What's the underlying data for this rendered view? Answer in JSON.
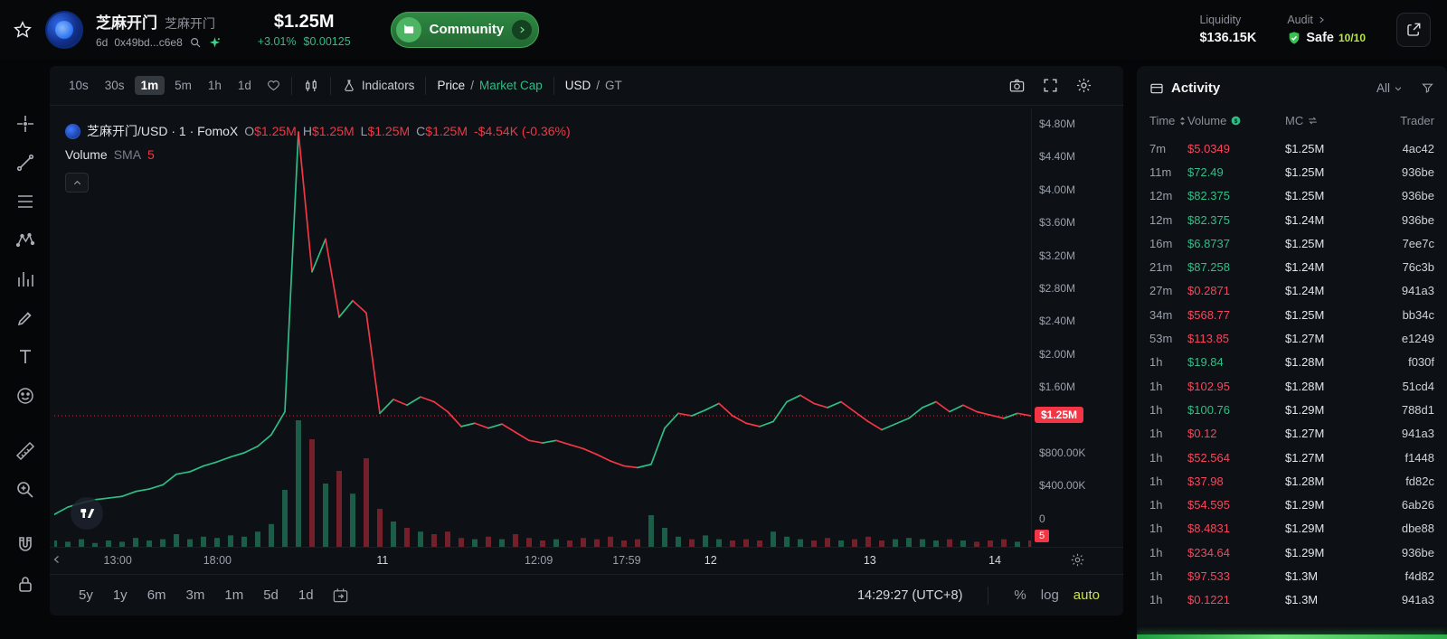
{
  "colors": {
    "green": "#2ebd85",
    "red": "#f23645",
    "table_green": "#2fbf87",
    "table_red": "#f6465d",
    "lime": "#b8e34b"
  },
  "header": {
    "token_name": "芝麻开门",
    "token_symbol": "芝麻开门",
    "age": "6d",
    "address": "0x49bd...c6e8",
    "market_cap": "$1.25M",
    "change": "+3.01%",
    "price_exact": "$0.00125",
    "community_label": "Community",
    "liquidity_label": "Liquidity",
    "liquidity_value": "$136.15K",
    "audit_label": "Audit",
    "audit_status": "Safe",
    "audit_score": "10/10"
  },
  "toolbar": {
    "timeframes": [
      "10s",
      "30s",
      "1m",
      "5m",
      "1h",
      "1d"
    ],
    "active_timeframe": "1m",
    "indicators_label": "Indicators",
    "price_label": "Price",
    "marketcap_label": "Market Cap",
    "usd_label": "USD",
    "gt_label": "GT",
    "slash": "/"
  },
  "legend": {
    "title": "芝麻开门/USD · 1 · FomoX",
    "volume_label": "Volume",
    "sma_label": "SMA",
    "sma_value": "5"
  },
  "chart_data": {
    "type": "candlestick",
    "symbol": "芝麻开门/USD",
    "interval": "1m",
    "exchange": "FomoX",
    "ohlc": [
      {
        "k": "O",
        "v": "$1.25M"
      },
      {
        "k": "H",
        "v": "$1.25M"
      },
      {
        "k": "L",
        "v": "$1.25M"
      },
      {
        "k": "C",
        "v": "$1.25M"
      }
    ],
    "ohlc_change": "-$4.54K (-0.36%)",
    "y_unit": "USD market cap, millions",
    "ylim": [
      0,
      5.0
    ],
    "current_price_value": 1.25,
    "current_price_label": "$1.25M",
    "volume_sma_badge": "5",
    "y_ticks": [
      {
        "label": "$4.80M",
        "v": 4.8
      },
      {
        "label": "$4.40M",
        "v": 4.4
      },
      {
        "label": "$4.00M",
        "v": 4.0
      },
      {
        "label": "$3.60M",
        "v": 3.6
      },
      {
        "label": "$3.20M",
        "v": 3.2
      },
      {
        "label": "$2.80M",
        "v": 2.8
      },
      {
        "label": "$2.40M",
        "v": 2.4
      },
      {
        "label": "$2.00M",
        "v": 2.0
      },
      {
        "label": "$1.60M",
        "v": 1.6
      },
      {
        "label": "$800.00K",
        "v": 0.8
      },
      {
        "label": "$400.00K",
        "v": 0.4
      },
      {
        "label": "0",
        "v": 0
      }
    ],
    "x_ticks": [
      {
        "label": "13:00",
        "f": 0.065,
        "major": false
      },
      {
        "label": "18:00",
        "f": 0.167,
        "major": false
      },
      {
        "label": "11",
        "f": 0.336,
        "major": true
      },
      {
        "label": "12:09",
        "f": 0.496,
        "major": false
      },
      {
        "label": "17:59",
        "f": 0.586,
        "major": false
      },
      {
        "label": "12",
        "f": 0.672,
        "major": true
      },
      {
        "label": "13",
        "f": 0.835,
        "major": true
      },
      {
        "label": "14",
        "f": 0.963,
        "major": true
      }
    ],
    "prices_musd": [
      0.05,
      0.14,
      0.19,
      0.23,
      0.25,
      0.27,
      0.33,
      0.36,
      0.41,
      0.54,
      0.57,
      0.64,
      0.69,
      0.75,
      0.8,
      0.88,
      1.02,
      1.3,
      4.7,
      3.0,
      3.4,
      2.45,
      2.65,
      2.5,
      1.28,
      1.45,
      1.38,
      1.48,
      1.42,
      1.3,
      1.12,
      1.16,
      1.1,
      1.15,
      1.05,
      0.95,
      0.92,
      0.95,
      0.9,
      0.85,
      0.78,
      0.7,
      0.64,
      0.62,
      0.66,
      1.1,
      1.28,
      1.25,
      1.32,
      1.4,
      1.25,
      1.16,
      1.12,
      1.18,
      1.42,
      1.5,
      1.4,
      1.35,
      1.42,
      1.3,
      1.18,
      1.08,
      1.15,
      1.22,
      1.35,
      1.42,
      1.3,
      1.38,
      1.3,
      1.26,
      1.22,
      1.28,
      1.25
    ],
    "volumes_rel": [
      0.05,
      0.04,
      0.06,
      0.03,
      0.05,
      0.04,
      0.07,
      0.05,
      0.06,
      0.1,
      0.06,
      0.08,
      0.07,
      0.09,
      0.08,
      0.12,
      0.18,
      0.45,
      1.0,
      0.85,
      0.5,
      0.6,
      0.42,
      0.7,
      0.3,
      0.2,
      0.15,
      0.12,
      0.1,
      0.12,
      0.07,
      0.06,
      0.08,
      0.06,
      0.1,
      0.07,
      0.05,
      0.06,
      0.05,
      0.07,
      0.06,
      0.08,
      0.05,
      0.06,
      0.25,
      0.15,
      0.08,
      0.06,
      0.09,
      0.06,
      0.05,
      0.06,
      0.05,
      0.12,
      0.08,
      0.06,
      0.05,
      0.07,
      0.05,
      0.06,
      0.08,
      0.05,
      0.06,
      0.07,
      0.06,
      0.05,
      0.06,
      0.05,
      0.04,
      0.05,
      0.06,
      0.04,
      0.05
    ]
  },
  "bottom_bar": {
    "ranges": [
      "5y",
      "1y",
      "6m",
      "3m",
      "1m",
      "5d",
      "1d"
    ],
    "clock": "14:29:27 (UTC+8)",
    "percent_label": "%",
    "log_label": "log",
    "auto_label": "auto"
  },
  "activity": {
    "title": "Activity",
    "filter_all": "All",
    "columns": [
      "Time",
      "Volume",
      "MC",
      "Trader"
    ],
    "rows": [
      {
        "time": "7m",
        "volume": "$5.0349",
        "side": "sell",
        "mc": "$1.25M",
        "trader": "4ac42"
      },
      {
        "time": "11m",
        "volume": "$72.49",
        "side": "buy",
        "mc": "$1.25M",
        "trader": "936be"
      },
      {
        "time": "12m",
        "volume": "$82.375",
        "side": "buy",
        "mc": "$1.25M",
        "trader": "936be"
      },
      {
        "time": "12m",
        "volume": "$82.375",
        "side": "buy",
        "mc": "$1.24M",
        "trader": "936be"
      },
      {
        "time": "16m",
        "volume": "$6.8737",
        "side": "buy",
        "mc": "$1.25M",
        "trader": "7ee7c"
      },
      {
        "time": "21m",
        "volume": "$87.258",
        "side": "buy",
        "mc": "$1.24M",
        "trader": "76c3b"
      },
      {
        "time": "27m",
        "volume": "$0.2871",
        "side": "sell",
        "mc": "$1.24M",
        "trader": "941a3"
      },
      {
        "time": "34m",
        "volume": "$568.77",
        "side": "sell",
        "mc": "$1.25M",
        "trader": "bb34c"
      },
      {
        "time": "53m",
        "volume": "$113.85",
        "side": "sell",
        "mc": "$1.27M",
        "trader": "e1249"
      },
      {
        "time": "1h",
        "volume": "$19.84",
        "side": "buy",
        "mc": "$1.28M",
        "trader": "f030f"
      },
      {
        "time": "1h",
        "volume": "$102.95",
        "side": "sell",
        "mc": "$1.28M",
        "trader": "51cd4"
      },
      {
        "time": "1h",
        "volume": "$100.76",
        "side": "buy",
        "mc": "$1.29M",
        "trader": "788d1"
      },
      {
        "time": "1h",
        "volume": "$0.12",
        "side": "sell",
        "mc": "$1.27M",
        "trader": "941a3"
      },
      {
        "time": "1h",
        "volume": "$52.564",
        "side": "sell",
        "mc": "$1.27M",
        "trader": "f1448"
      },
      {
        "time": "1h",
        "volume": "$37.98",
        "side": "sell",
        "mc": "$1.28M",
        "trader": "fd82c"
      },
      {
        "time": "1h",
        "volume": "$54.595",
        "side": "sell",
        "mc": "$1.29M",
        "trader": "6ab26"
      },
      {
        "time": "1h",
        "volume": "$8.4831",
        "side": "sell",
        "mc": "$1.29M",
        "trader": "dbe88"
      },
      {
        "time": "1h",
        "volume": "$234.64",
        "side": "sell",
        "mc": "$1.29M",
        "trader": "936be"
      },
      {
        "time": "1h",
        "volume": "$97.533",
        "side": "sell",
        "mc": "$1.3M",
        "trader": "f4d82"
      },
      {
        "time": "1h",
        "volume": "$0.1221",
        "side": "sell",
        "mc": "$1.3M",
        "trader": "941a3"
      }
    ]
  }
}
